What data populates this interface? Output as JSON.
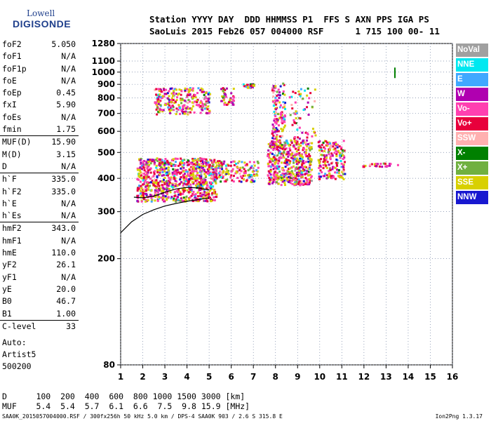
{
  "logo": {
    "top": "Lowell",
    "bottom": "DIGISONDE"
  },
  "header": {
    "line1": "Station YYYY DAY  DDD HHMMSS P1  FFS S AXN PPS IGA PS",
    "line2": "SaoLuis 2015 Feb26 057 004000 RSF      1 715 100 00- 11"
  },
  "params": [
    {
      "label": "foF2",
      "value": "5.050"
    },
    {
      "label": "foF1",
      "value": "N/A"
    },
    {
      "label": "foF1p",
      "value": "N/A"
    },
    {
      "label": "foE",
      "value": "N/A"
    },
    {
      "label": "foEp",
      "value": "0.45"
    },
    {
      "label": "fxI",
      "value": "5.90"
    },
    {
      "label": "foEs",
      "value": "N/A"
    },
    {
      "label": "fmin",
      "value": "1.75"
    },
    {
      "label": "MUF(D)",
      "value": "15.90",
      "sep": true
    },
    {
      "label": "M(D)",
      "value": "3.15"
    },
    {
      "label": "D",
      "value": "N/A"
    },
    {
      "label": "h`F",
      "value": "335.0",
      "sep": true
    },
    {
      "label": "h`F2",
      "value": "335.0"
    },
    {
      "label": "h`E",
      "value": "N/A"
    },
    {
      "label": "h`Es",
      "value": "N/A"
    },
    {
      "label": "hmF2",
      "value": "343.0",
      "sep": true
    },
    {
      "label": "hmF1",
      "value": "N/A"
    },
    {
      "label": "hmE",
      "value": "110.0"
    },
    {
      "label": "yF2",
      "value": "26.1"
    },
    {
      "label": "yF1",
      "value": "N/A"
    },
    {
      "label": "yE",
      "value": "20.0"
    },
    {
      "label": "B0",
      "value": "46.7"
    },
    {
      "label": "B1",
      "value": "1.00"
    },
    {
      "label": "C-level",
      "value": "33",
      "sep": true
    }
  ],
  "auto": {
    "line1": "Auto:",
    "line2": "Artist5",
    "line3": "500200"
  },
  "legend": [
    {
      "label": "NoVal",
      "color": "#a0a0a0"
    },
    {
      "label": "NNE",
      "color": "#00e8f0"
    },
    {
      "label": "E",
      "color": "#40a8ff"
    },
    {
      "label": "W",
      "color": "#b000b0"
    },
    {
      "label": "Vo-",
      "color": "#ff40b0"
    },
    {
      "label": "Vo+",
      "color": "#e8003c"
    },
    {
      "label": "SSW",
      "color": "#ffb0b0"
    },
    {
      "label": "X-",
      "color": "#008000"
    },
    {
      "label": "X+",
      "color": "#70b040"
    },
    {
      "label": "SSE",
      "color": "#d8d000"
    },
    {
      "label": "NNW",
      "color": "#1818d0"
    }
  ],
  "bottom": {
    "line1": "D      100  200  400  600  800 1000 1500 3000 [km]",
    "line2": "MUF    5.4  5.4  5.7  6.1  6.6  7.5  9.8 15.9 [MHz]"
  },
  "footer": {
    "left": "SAA0K_2015057004000.RSF / 300fx256h 50 kHz 5.0 km / DPS-4 SAA0K 903 / 2.6 S 315.8 E",
    "right": "Ion2Png 1.3.17"
  },
  "chart_data": {
    "type": "scatter",
    "title": "",
    "xlabel": "",
    "ylabel": "",
    "xlim": [
      1,
      16
    ],
    "ylim": [
      80,
      1280
    ],
    "y_scale": "log",
    "x_ticks": [
      1,
      2,
      3,
      4,
      5,
      6,
      7,
      8,
      9,
      10,
      11,
      12,
      13,
      14,
      15,
      16
    ],
    "y_ticks": [
      80,
      200,
      300,
      400,
      500,
      600,
      700,
      800,
      900,
      1000,
      1100,
      1280
    ],
    "grid": true,
    "profile_curve": {
      "x": [
        1.0,
        1.5,
        2.0,
        2.5,
        3.0,
        3.5,
        4.0,
        4.5,
        5.0
      ],
      "y": [
        250,
        275,
        293,
        305,
        315,
        322,
        328,
        333,
        338
      ]
    },
    "trace_curve": {
      "x": [
        1.6,
        2.0,
        2.5,
        3.0,
        3.5,
        4.0,
        4.5,
        5.0
      ],
      "y": [
        340,
        338,
        343,
        355,
        365,
        370,
        368,
        362
      ]
    },
    "echo_regions": [
      {
        "x": [
          1.7,
          5.3
        ],
        "y": [
          330,
          480
        ],
        "n": 900
      },
      {
        "x": [
          7.6,
          9.6
        ],
        "y": [
          380,
          560
        ],
        "n": 500
      },
      {
        "x": [
          9.9,
          11.1
        ],
        "y": [
          400,
          560
        ],
        "n": 180
      },
      {
        "x": [
          5.2,
          7.2
        ],
        "y": [
          390,
          470
        ],
        "n": 150
      },
      {
        "x": [
          2.5,
          5.0
        ],
        "y": [
          700,
          880
        ],
        "n": 260
      },
      {
        "x": [
          5.5,
          6.1
        ],
        "y": [
          760,
          880
        ],
        "n": 50
      },
      {
        "x": [
          6.5,
          7.0
        ],
        "y": [
          880,
          910
        ],
        "n": 30
      },
      {
        "x": [
          7.8,
          8.4
        ],
        "y": [
          500,
          920
        ],
        "n": 140
      },
      {
        "x": [
          8.6,
          9.8
        ],
        "y": [
          560,
          880
        ],
        "n": 60
      },
      {
        "x": [
          11.9,
          13.5
        ],
        "y": [
          445,
          460
        ],
        "n": 30
      }
    ],
    "segments": [
      {
        "x": 13.4,
        "y": [
          950,
          1040
        ],
        "color": "#008000"
      }
    ]
  }
}
